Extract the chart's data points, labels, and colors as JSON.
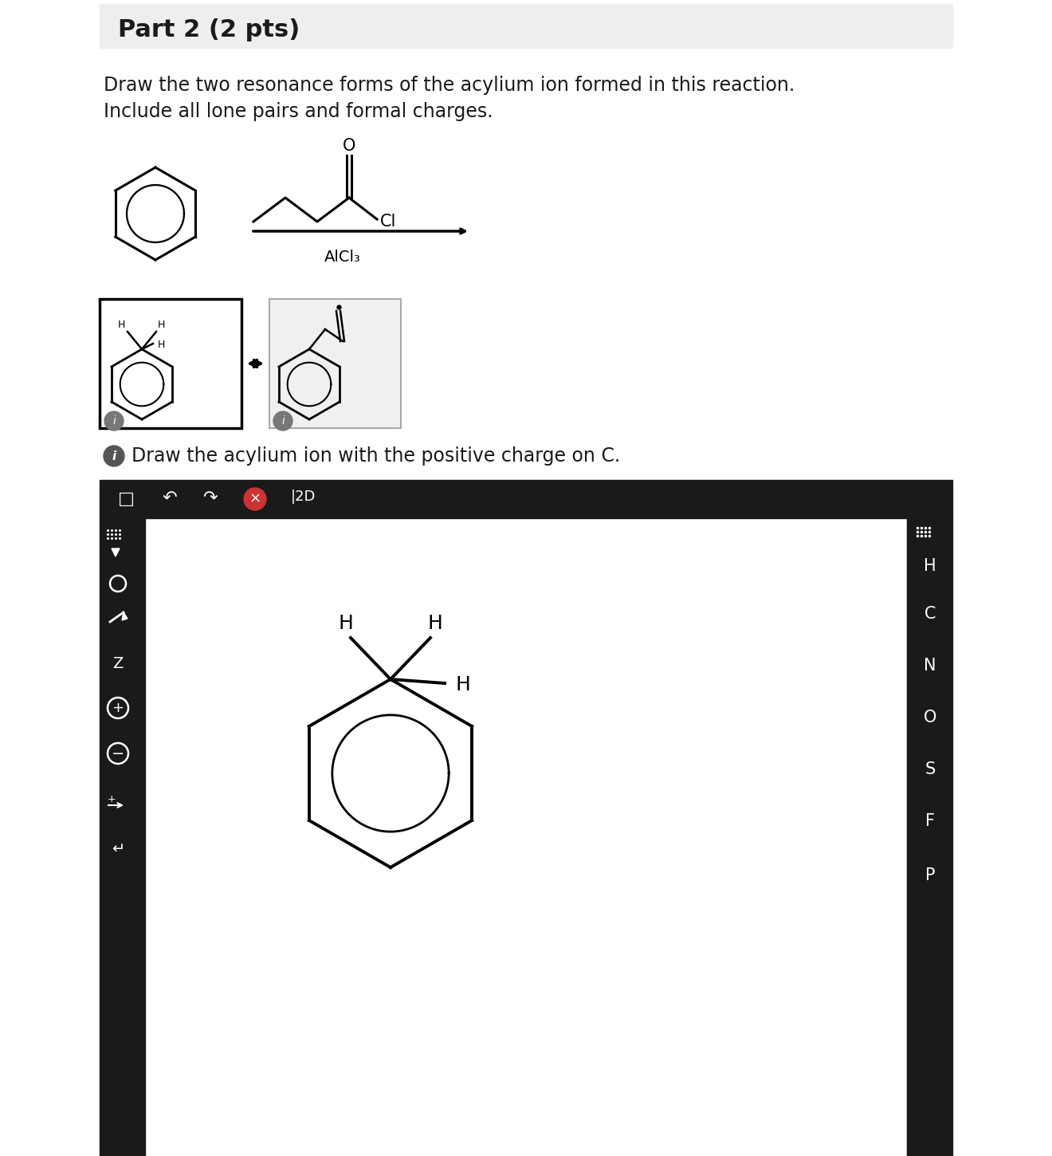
{
  "title": "Part 2 (2 pts)",
  "instruction_line1": "Draw the two resonance forms of the acylium ion formed in this reaction.",
  "instruction_line2": "Include all lone pairs and formal charges.",
  "alcl3_label": "AlCl₃",
  "ci_label": "Cl",
  "info_text": "Draw the acylium ion with the positive charge on C.",
  "toolbar_labels": [
    "H",
    "C",
    "N",
    "O",
    "S",
    "F",
    "P"
  ],
  "bg_color": "#ffffff",
  "header_bg": "#eeeeee",
  "dark_color": "#1a1a1a",
  "toolbar_bg": "#1a1a1a"
}
